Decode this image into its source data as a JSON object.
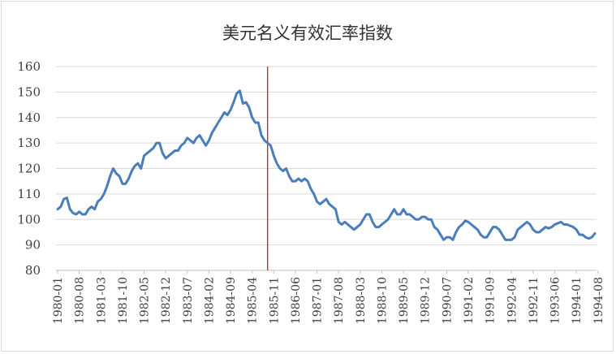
{
  "chart_data": {
    "type": "line",
    "title": "美元名义有效汇率指数",
    "xlabel": "",
    "ylabel": "",
    "ylim": [
      80,
      160
    ],
    "yticks": [
      80,
      90,
      100,
      110,
      120,
      130,
      140,
      150,
      160
    ],
    "grid": true,
    "legend": "none",
    "x_tick_labels": [
      "1980-01",
      "1980-08",
      "1981-03",
      "1981-10",
      "1982-05",
      "1982-12",
      "1983-07",
      "1984-02",
      "1984-09",
      "1985-04",
      "1985-11",
      "1986-06",
      "1987-01",
      "1987-08",
      "1988-03",
      "1988-10",
      "1989-05",
      "1989-12",
      "1990-07",
      "1991-02",
      "1991-09",
      "1992-04",
      "1992-11",
      "1993-06",
      "1994-01",
      "1994-08"
    ],
    "reference_line": {
      "x": "1985-09",
      "color": "#a03030"
    },
    "series": [
      {
        "color": "#4a7ebb",
        "start": "1980-01",
        "values": [
          104,
          105,
          108,
          108.5,
          104,
          102.5,
          102,
          103,
          102,
          102,
          104,
          105,
          104,
          107,
          108,
          110,
          113,
          117,
          120,
          118,
          117,
          114,
          114,
          116,
          119,
          121,
          122,
          120,
          125,
          126,
          127,
          128,
          130,
          130,
          126,
          124,
          125,
          126,
          127,
          127,
          129,
          130,
          132,
          131,
          130,
          132,
          133,
          131,
          129,
          131,
          134,
          136,
          138,
          140,
          142,
          141,
          143,
          146,
          149.5,
          150.5,
          145.5,
          146,
          144,
          140,
          138,
          138,
          133,
          131,
          130,
          129,
          125,
          122,
          120,
          119,
          120,
          117,
          115,
          115,
          116,
          115,
          116,
          115,
          112,
          110,
          107,
          106,
          107,
          108,
          106,
          105,
          104,
          99,
          98,
          99,
          98,
          97,
          96,
          97,
          98,
          100,
          102,
          102,
          99,
          97,
          97,
          98,
          99,
          100,
          102,
          104,
          102,
          102,
          104,
          102,
          102,
          101,
          100,
          100,
          101,
          101,
          100,
          100,
          97,
          96,
          94,
          92,
          93,
          93,
          92,
          95,
          97,
          98,
          99.5,
          99,
          98,
          97,
          96,
          94,
          93,
          93,
          95,
          97,
          97,
          96,
          94,
          92,
          92,
          92,
          93,
          96,
          97,
          98,
          99,
          98,
          96,
          95,
          95,
          96,
          97,
          96.5,
          97,
          98,
          98.5,
          99,
          98,
          98,
          97.5,
          97,
          96,
          94,
          94,
          93,
          92.5,
          93,
          94.5
        ]
      }
    ]
  }
}
